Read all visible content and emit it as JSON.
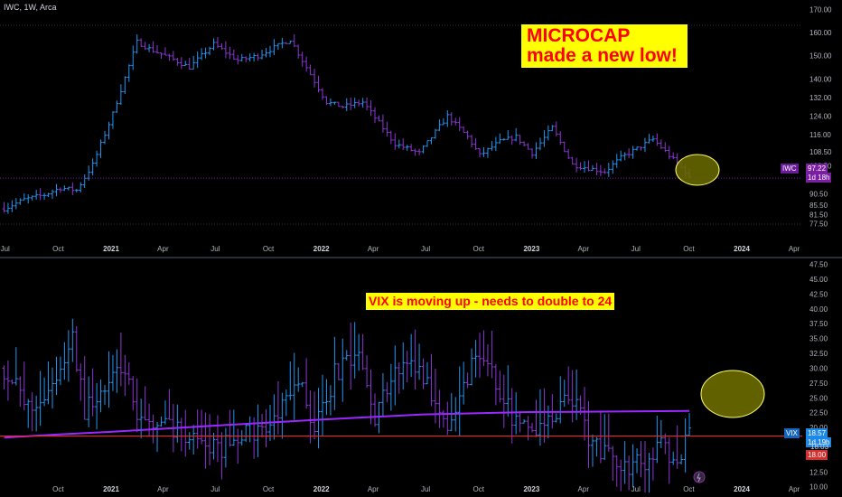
{
  "symbol": "IWC, 1W, Arca",
  "annotations": {
    "microcap": "MICROCAP made a new low!",
    "vix": "VIX is moving up - needs to double to 24"
  },
  "badges": {
    "iwc_ticker": "IWC",
    "iwc_price": "97.22",
    "iwc_countdown": "1d 18h",
    "vix_ticker": "VIX",
    "vix_price": "18.57",
    "vix_countdown": "1d 19h",
    "vix_level_a": "18.03",
    "vix_level_b": "18.00"
  },
  "colors": {
    "background": "#000000",
    "bar_up": "#2196f3",
    "bar_down": "#8c36d6",
    "vix_ma": "#9c27ff",
    "hline": "#ff2222",
    "annotation_bg": "#ffff00",
    "annotation_text": "#ff0000",
    "highlight_fill": "#6b6b00",
    "highlight_stroke": "#ffff66"
  },
  "chart_data": [
    {
      "type": "ohlc",
      "name": "IWC",
      "ylim": [
        73,
        172
      ],
      "yticks": [
        "170.00",
        "160.00",
        "150.00",
        "140.00",
        "132.00",
        "124.00",
        "116.00",
        "108.50",
        "102.50",
        "90.50",
        "85.50",
        "81.50",
        "77.50"
      ],
      "xticks": [
        "Jul",
        "Oct",
        "2021",
        "Apr",
        "Jul",
        "Oct",
        "2022",
        "Apr",
        "Jul",
        "Oct",
        "2023",
        "Apr",
        "Jul",
        "Oct",
        "2024",
        "Apr"
      ],
      "x_start": "2020-06",
      "x_end": "2024-04",
      "close_keyframes": [
        [
          "2020-06-29",
          84
        ],
        [
          "2020-08-03",
          88
        ],
        [
          "2020-09-07",
          90
        ],
        [
          "2020-10-05",
          93
        ],
        [
          "2020-11-02",
          92
        ],
        [
          "2020-11-30",
          103
        ],
        [
          "2021-01-04",
          125
        ],
        [
          "2021-02-15",
          156
        ],
        [
          "2021-03-08",
          153
        ],
        [
          "2021-04-05",
          150
        ],
        [
          "2021-05-17",
          145
        ],
        [
          "2021-06-28",
          155
        ],
        [
          "2021-08-09",
          148
        ],
        [
          "2021-09-13",
          150
        ],
        [
          "2021-11-08",
          157
        ],
        [
          "2021-12-06",
          145
        ],
        [
          "2022-01-10",
          130
        ],
        [
          "2022-02-07",
          128
        ],
        [
          "2022-03-14",
          130
        ],
        [
          "2022-05-09",
          112
        ],
        [
          "2022-06-20",
          108
        ],
        [
          "2022-08-08",
          124
        ],
        [
          "2022-09-12",
          115
        ],
        [
          "2022-10-03",
          107
        ],
        [
          "2022-11-07",
          113
        ],
        [
          "2022-12-05",
          115
        ],
        [
          "2023-01-02",
          108
        ],
        [
          "2023-02-06",
          119
        ],
        [
          "2023-03-13",
          103
        ],
        [
          "2023-05-08",
          100
        ],
        [
          "2023-06-05",
          106
        ],
        [
          "2023-07-31",
          114
        ],
        [
          "2023-08-28",
          107
        ],
        [
          "2023-09-25",
          100
        ],
        [
          "2023-10-02",
          97.22
        ]
      ],
      "last_price": 97.22
    },
    {
      "type": "ohlc",
      "name": "VIX",
      "ylim": [
        10,
        48
      ],
      "yticks": [
        "47.50",
        "45.00",
        "42.50",
        "40.00",
        "37.50",
        "35.00",
        "32.50",
        "30.00",
        "27.50",
        "25.00",
        "22.50",
        "20.00",
        "17.50",
        "15.00",
        "12.50",
        "10.00"
      ],
      "xticks": [
        "Oct",
        "2021",
        "Apr",
        "Jul",
        "Oct",
        "2022",
        "Apr",
        "Jul",
        "Oct",
        "2023",
        "Apr",
        "Jul",
        "Oct",
        "2024",
        "Apr"
      ],
      "close_keyframes": [
        [
          "2020-06-29",
          30
        ],
        [
          "2020-08-10",
          23
        ],
        [
          "2020-09-21",
          27
        ],
        [
          "2020-10-26",
          35
        ],
        [
          "2020-11-16",
          23
        ],
        [
          "2021-01-25",
          30
        ],
        [
          "2021-02-15",
          20
        ],
        [
          "2021-03-15",
          21
        ],
        [
          "2021-05-17",
          19
        ],
        [
          "2021-07-05",
          16
        ],
        [
          "2021-08-16",
          19
        ],
        [
          "2021-10-04",
          20
        ],
        [
          "2021-11-29",
          28
        ],
        [
          "2021-12-20",
          19
        ],
        [
          "2022-01-24",
          29
        ],
        [
          "2022-03-07",
          32
        ],
        [
          "2022-04-04",
          22
        ],
        [
          "2022-05-16",
          30
        ],
        [
          "2022-06-13",
          31
        ],
        [
          "2022-08-15",
          20
        ],
        [
          "2022-09-26",
          32
        ],
        [
          "2022-10-17",
          30
        ],
        [
          "2022-11-28",
          22
        ],
        [
          "2023-01-16",
          20
        ],
        [
          "2023-03-13",
          25
        ],
        [
          "2023-04-17",
          17
        ],
        [
          "2023-06-05",
          14
        ],
        [
          "2023-07-24",
          13.5
        ],
        [
          "2023-08-14",
          17
        ],
        [
          "2023-09-11",
          14
        ],
        [
          "2023-10-02",
          18.57
        ]
      ],
      "moving_average": [
        [
          "2020-06-29",
          18.3
        ],
        [
          "2020-09-28",
          18.8
        ],
        [
          "2021-01-04",
          19.3
        ],
        [
          "2021-06-28",
          20.3
        ],
        [
          "2021-12-27",
          21.3
        ],
        [
          "2022-06-27",
          22.2
        ],
        [
          "2022-12-26",
          22.6
        ],
        [
          "2023-06-26",
          22.7
        ],
        [
          "2023-10-02",
          22.8
        ]
      ],
      "hlines": [
        18.57
      ],
      "last_price": 18.57
    }
  ]
}
